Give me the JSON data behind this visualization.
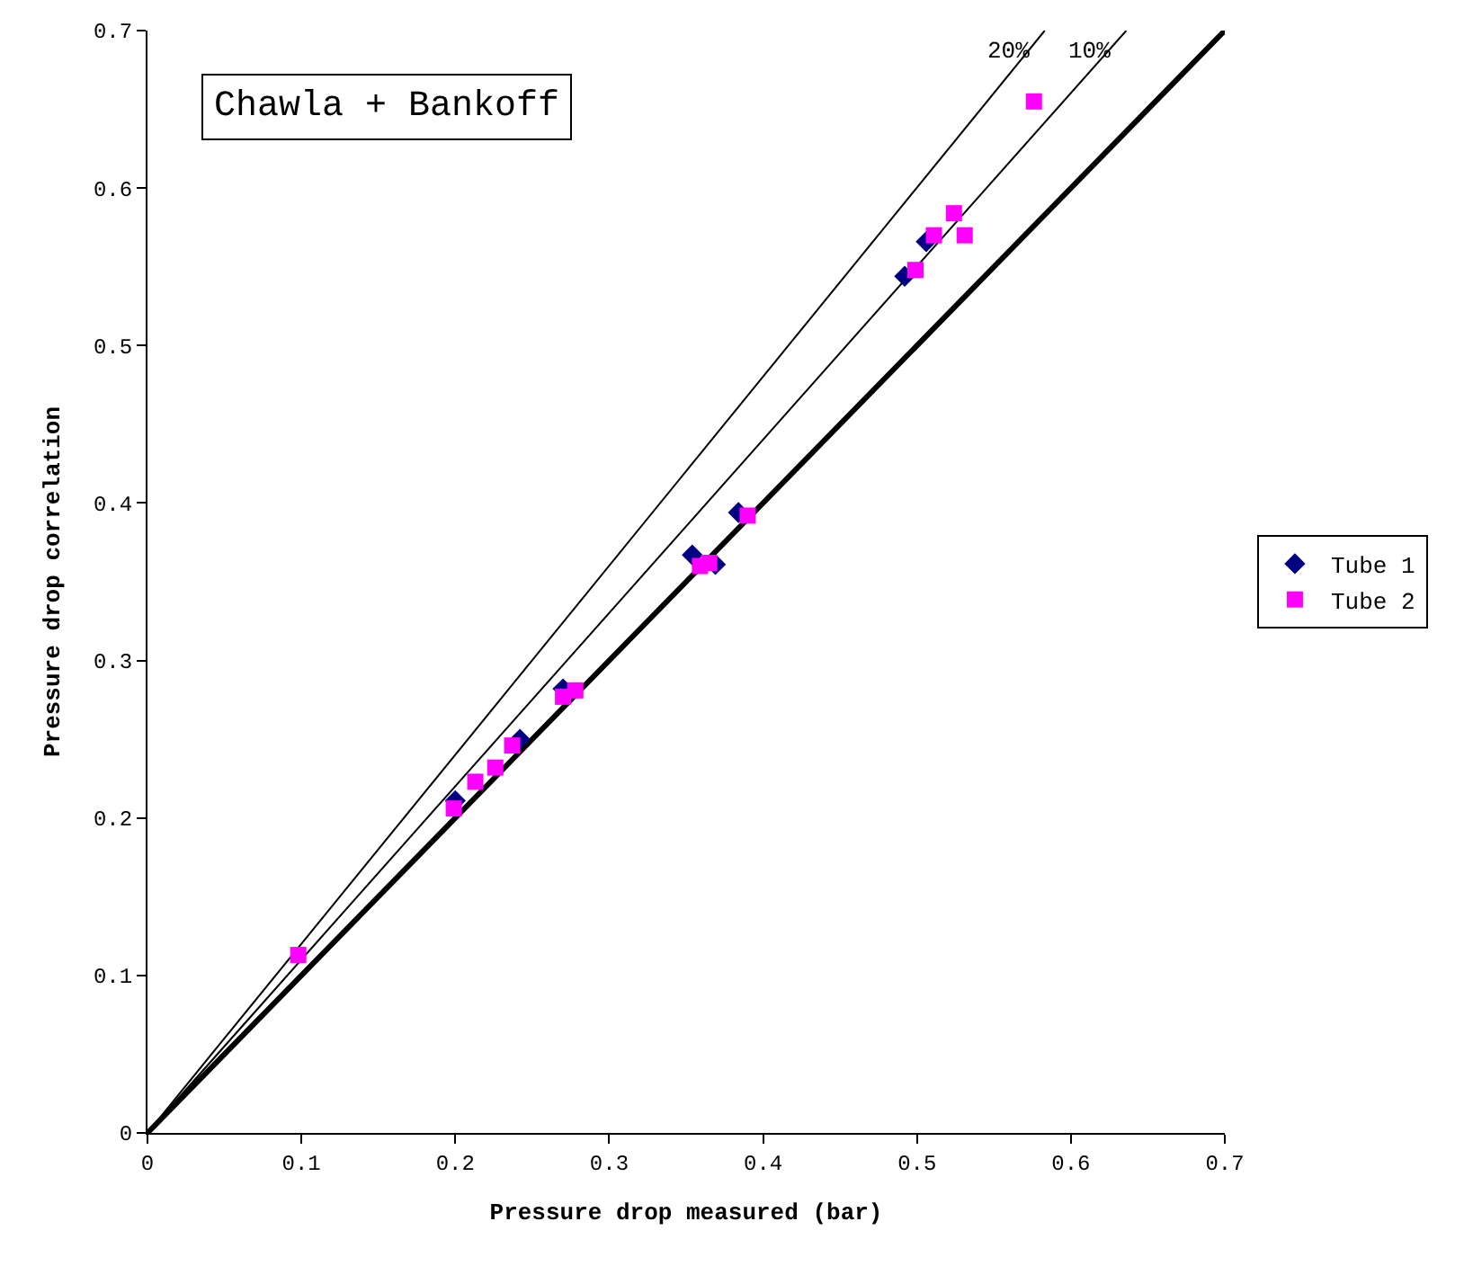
{
  "chart_data": {
    "type": "scatter",
    "title": "Chawla + Bankoff",
    "xlabel": "Pressure drop measured (bar)",
    "ylabel": "Pressure drop correlation",
    "xlim": [
      0,
      0.7
    ],
    "ylim": [
      0,
      0.7
    ],
    "xticks": [
      0,
      0.1,
      0.2,
      0.3,
      0.4,
      0.5,
      0.6,
      0.7
    ],
    "yticks": [
      0,
      0.1,
      0.2,
      0.3,
      0.4,
      0.5,
      0.6,
      0.7
    ],
    "legend": "right",
    "series": [
      {
        "type": "line",
        "color": "#000000",
        "x": [
          0,
          0.7
        ],
        "values": [
          0,
          0.7
        ]
      },
      {
        "type": "line",
        "color": "#000000",
        "x": [
          0,
          0.636
        ],
        "values": [
          0,
          0.7
        ]
      },
      {
        "type": "line",
        "color": "#000000",
        "x": [
          0,
          0.583
        ],
        "values": [
          0,
          0.7
        ]
      },
      {
        "name": "Tube 1",
        "color": "#000080",
        "marker": "diamond",
        "x": [
          0.2,
          0.242,
          0.27,
          0.354,
          0.369,
          0.384,
          0.492,
          0.506
        ],
        "values": [
          0.211,
          0.25,
          0.282,
          0.367,
          0.361,
          0.394,
          0.544,
          0.566
        ]
      },
      {
        "name": "Tube 2",
        "color": "#ff00ff",
        "marker": "square",
        "x": [
          0.098,
          0.199,
          0.213,
          0.226,
          0.237,
          0.27,
          0.278,
          0.359,
          0.365,
          0.39,
          0.499,
          0.511,
          0.524,
          0.531,
          0.576
        ],
        "values": [
          0.113,
          0.206,
          0.223,
          0.232,
          0.246,
          0.277,
          0.281,
          0.36,
          0.362,
          0.392,
          0.548,
          0.57,
          0.584,
          0.57,
          0.655
        ]
      }
    ],
    "annotations": [
      {
        "text": "20%",
        "x": 0.583,
        "y": 0.7
      },
      {
        "text": "10%",
        "x": 0.636,
        "y": 0.7
      }
    ]
  }
}
